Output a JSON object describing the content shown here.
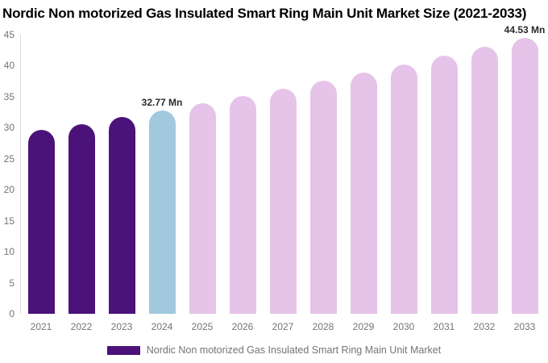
{
  "title": "Nordic Non motorized Gas Insulated Smart Ring Main Unit Market Size (2021-2033)",
  "legend": {
    "label": "Nordic Non motorized Gas Insulated Smart Ring Main Unit Market",
    "swatch_color": "#4B1279"
  },
  "colors": {
    "historical_bar": "#4B1279",
    "current_year_bar": "#A1C8DE",
    "forecast_bar": "#E6C3E9",
    "axis_text": "#757575",
    "title_text": "#000000",
    "value_label_text": "#2b2b2b",
    "axis_line": "#d9d9d9"
  },
  "chart_data": {
    "type": "bar",
    "title": "Nordic Non motorized Gas Insulated Smart Ring Main Unit Market Size (2021-2033)",
    "series_name": "Nordic Non motorized Gas Insulated Smart Ring Main Unit Market",
    "unit": "Mn",
    "categories": [
      "2021",
      "2022",
      "2023",
      "2024",
      "2025",
      "2026",
      "2027",
      "2028",
      "2029",
      "2030",
      "2031",
      "2032",
      "2033"
    ],
    "values": [
      29.59,
      30.61,
      31.67,
      32.77,
      33.91,
      35.08,
      36.3,
      37.55,
      38.86,
      40.2,
      41.6,
      43.04,
      44.53
    ],
    "point_roles": [
      "historical",
      "historical",
      "historical",
      "current",
      "forecast",
      "forecast",
      "forecast",
      "forecast",
      "forecast",
      "forecast",
      "forecast",
      "forecast",
      "forecast"
    ],
    "point_colors": [
      "#4B1279",
      "#4B1279",
      "#4B1279",
      "#A1C8DE",
      "#E6C3E9",
      "#E6C3E9",
      "#E6C3E9",
      "#E6C3E9",
      "#E6C3E9",
      "#E6C3E9",
      "#E6C3E9",
      "#E6C3E9",
      "#E6C3E9"
    ],
    "point_labels": [
      "",
      "",
      "",
      "32.77 Mn",
      "",
      "",
      "",
      "",
      "",
      "",
      "",
      "",
      "44.53 Mn"
    ],
    "xlabel": "",
    "ylabel": "",
    "ylim": [
      0,
      45
    ],
    "y_ticks": [
      0,
      5,
      10,
      15,
      20,
      25,
      30,
      35,
      40,
      45
    ],
    "grid": false,
    "legend_position": "bottom"
  }
}
